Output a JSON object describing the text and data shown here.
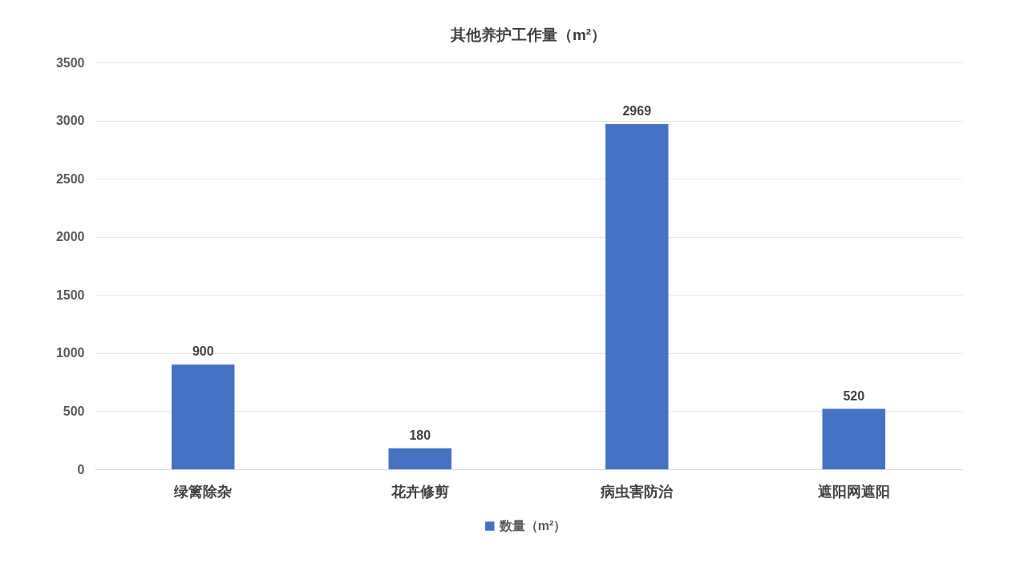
{
  "chart_data": {
    "type": "bar",
    "title": "其他养护工作量（m²）",
    "categories": [
      "绿篱除杂",
      "花卉修剪",
      "病虫害防治",
      "遮阳网遮阳"
    ],
    "series": [
      {
        "name": "数量（m²）",
        "color": "#4472c4",
        "values": [
          900,
          180,
          2969,
          520
        ]
      }
    ],
    "ylim": [
      0,
      3500
    ],
    "yticks": [
      0,
      500,
      1000,
      1500,
      2000,
      2500,
      3000,
      3500
    ],
    "grid": "y",
    "legend": "bottom",
    "data_labels": true
  }
}
